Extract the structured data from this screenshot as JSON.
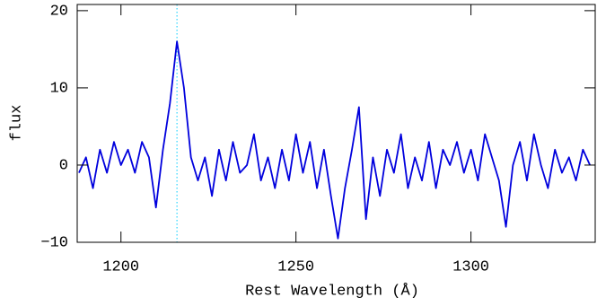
{
  "chart_data": {
    "type": "line",
    "xlabel": "Rest Wavelength (Å)",
    "ylabel": "flux",
    "x": [
      1188,
      1190,
      1192,
      1194,
      1196,
      1198,
      1200,
      1202,
      1204,
      1206,
      1208,
      1210,
      1212,
      1214,
      1216,
      1218,
      1220,
      1222,
      1224,
      1226,
      1228,
      1230,
      1232,
      1234,
      1236,
      1238,
      1240,
      1242,
      1244,
      1246,
      1248,
      1250,
      1252,
      1254,
      1256,
      1258,
      1260,
      1262,
      1264,
      1266,
      1268,
      1270,
      1272,
      1274,
      1276,
      1278,
      1280,
      1282,
      1284,
      1286,
      1288,
      1290,
      1292,
      1294,
      1296,
      1298,
      1300,
      1302,
      1304,
      1306,
      1308,
      1310,
      1312,
      1314,
      1316,
      1318,
      1320,
      1322,
      1324,
      1326,
      1328,
      1330,
      1332,
      1334
    ],
    "series": [
      {
        "color": "#0000dd",
        "values": [
          -1,
          1,
          -3,
          2,
          -1,
          3,
          0,
          2,
          -1,
          3,
          1,
          -5.5,
          2,
          8,
          16,
          10,
          1,
          -2,
          1,
          -4,
          2,
          -2,
          3,
          -1,
          0,
          4,
          -2,
          1,
          -3,
          2,
          -2,
          4,
          -1,
          3,
          -3,
          2,
          -4,
          -9.5,
          -3,
          2,
          7.5,
          -7,
          1,
          -4,
          2,
          -1,
          4,
          -3,
          1,
          -2,
          3,
          -3,
          2,
          0,
          3,
          -1,
          2,
          -2,
          4,
          1,
          -2,
          -8,
          0,
          3,
          -2,
          4,
          0,
          -3,
          2,
          -1,
          1,
          -2,
          2,
          0
        ]
      }
    ],
    "reference_line": {
      "x": 1216,
      "color": "#00ccff"
    },
    "xlim": [
      1187.5,
      1335.5
    ],
    "ylim": [
      -10,
      20.8
    ],
    "xticks": [
      1200,
      1250,
      1300
    ],
    "yticks": [
      {
        "value": -10,
        "label": "−10"
      },
      0,
      10,
      20
    ]
  }
}
